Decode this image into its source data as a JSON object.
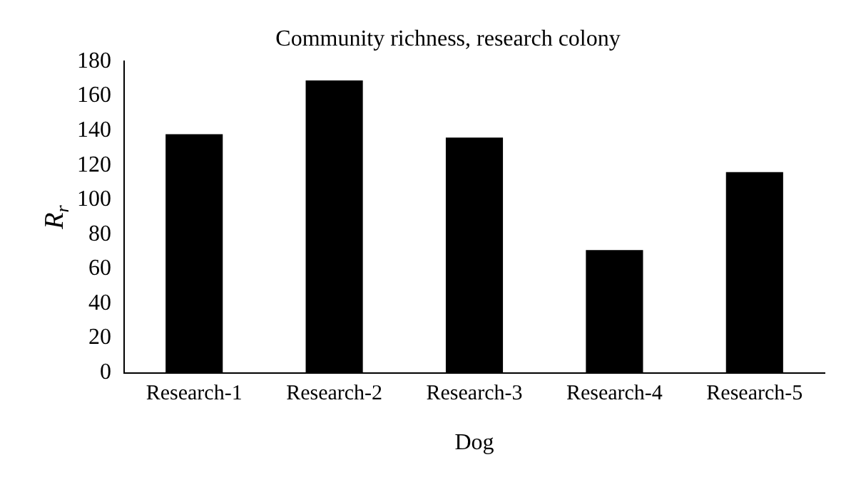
{
  "chart_data": {
    "type": "bar",
    "title": "Community richness, research colony",
    "xlabel": "Dog",
    "ylabel": "R$_{r}$",
    "categories": [
      "Research-1",
      "Research-2",
      "Research-3",
      "Research-4",
      "Research-5"
    ],
    "values": [
      138,
      169,
      136,
      71,
      116
    ],
    "color": "#000000",
    "ylim": [
      0,
      180
    ],
    "yticks": [
      0,
      20,
      40,
      60,
      80,
      100,
      120,
      140,
      160,
      180
    ],
    "grid": false,
    "legend": false
  }
}
